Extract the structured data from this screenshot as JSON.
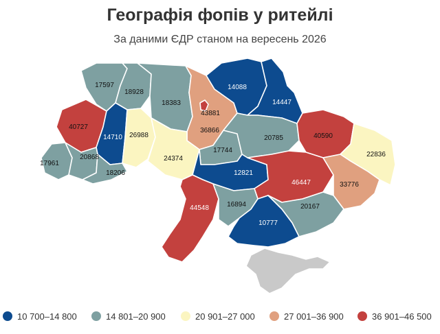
{
  "title": "Географія фопів у ритейлі",
  "subtitle": "За даними ЄДР станом на вересень 2026",
  "colors": {
    "c1": "#0d4b8f",
    "c2": "#7ea0a1",
    "c3": "#fbf5c1",
    "c4": "#e0a07f",
    "c5": "#c3413e",
    "crimea": "#c9c9c9"
  },
  "regions": [
    {
      "value": "17597"
    },
    {
      "value": "18928"
    },
    {
      "value": "18383"
    },
    {
      "value": "14088"
    },
    {
      "value": "14447"
    },
    {
      "value": "43881"
    },
    {
      "value": "36866"
    },
    {
      "value": "40727"
    },
    {
      "value": "14710"
    },
    {
      "value": "26988"
    },
    {
      "value": "24374"
    },
    {
      "value": "17744"
    },
    {
      "value": "20785"
    },
    {
      "value": "40590"
    },
    {
      "value": "22836"
    },
    {
      "value": "17961"
    },
    {
      "value": "20868"
    },
    {
      "value": "18206"
    },
    {
      "value": "12821"
    },
    {
      "value": "46447"
    },
    {
      "value": "33776"
    },
    {
      "value": "44548"
    },
    {
      "value": "16894"
    },
    {
      "value": "20167"
    },
    {
      "value": "10777"
    }
  ],
  "legend": [
    {
      "label": "10 700–14 800",
      "color": "#0d4b8f"
    },
    {
      "label": "14 801–20 900",
      "color": "#7ea0a1"
    },
    {
      "label": "20 901–27 000",
      "color": "#fbf5c1"
    },
    {
      "label": "27 001–36 900",
      "color": "#e0a07f"
    },
    {
      "label": "36 901–46 500",
      "color": "#c3413e"
    }
  ]
}
